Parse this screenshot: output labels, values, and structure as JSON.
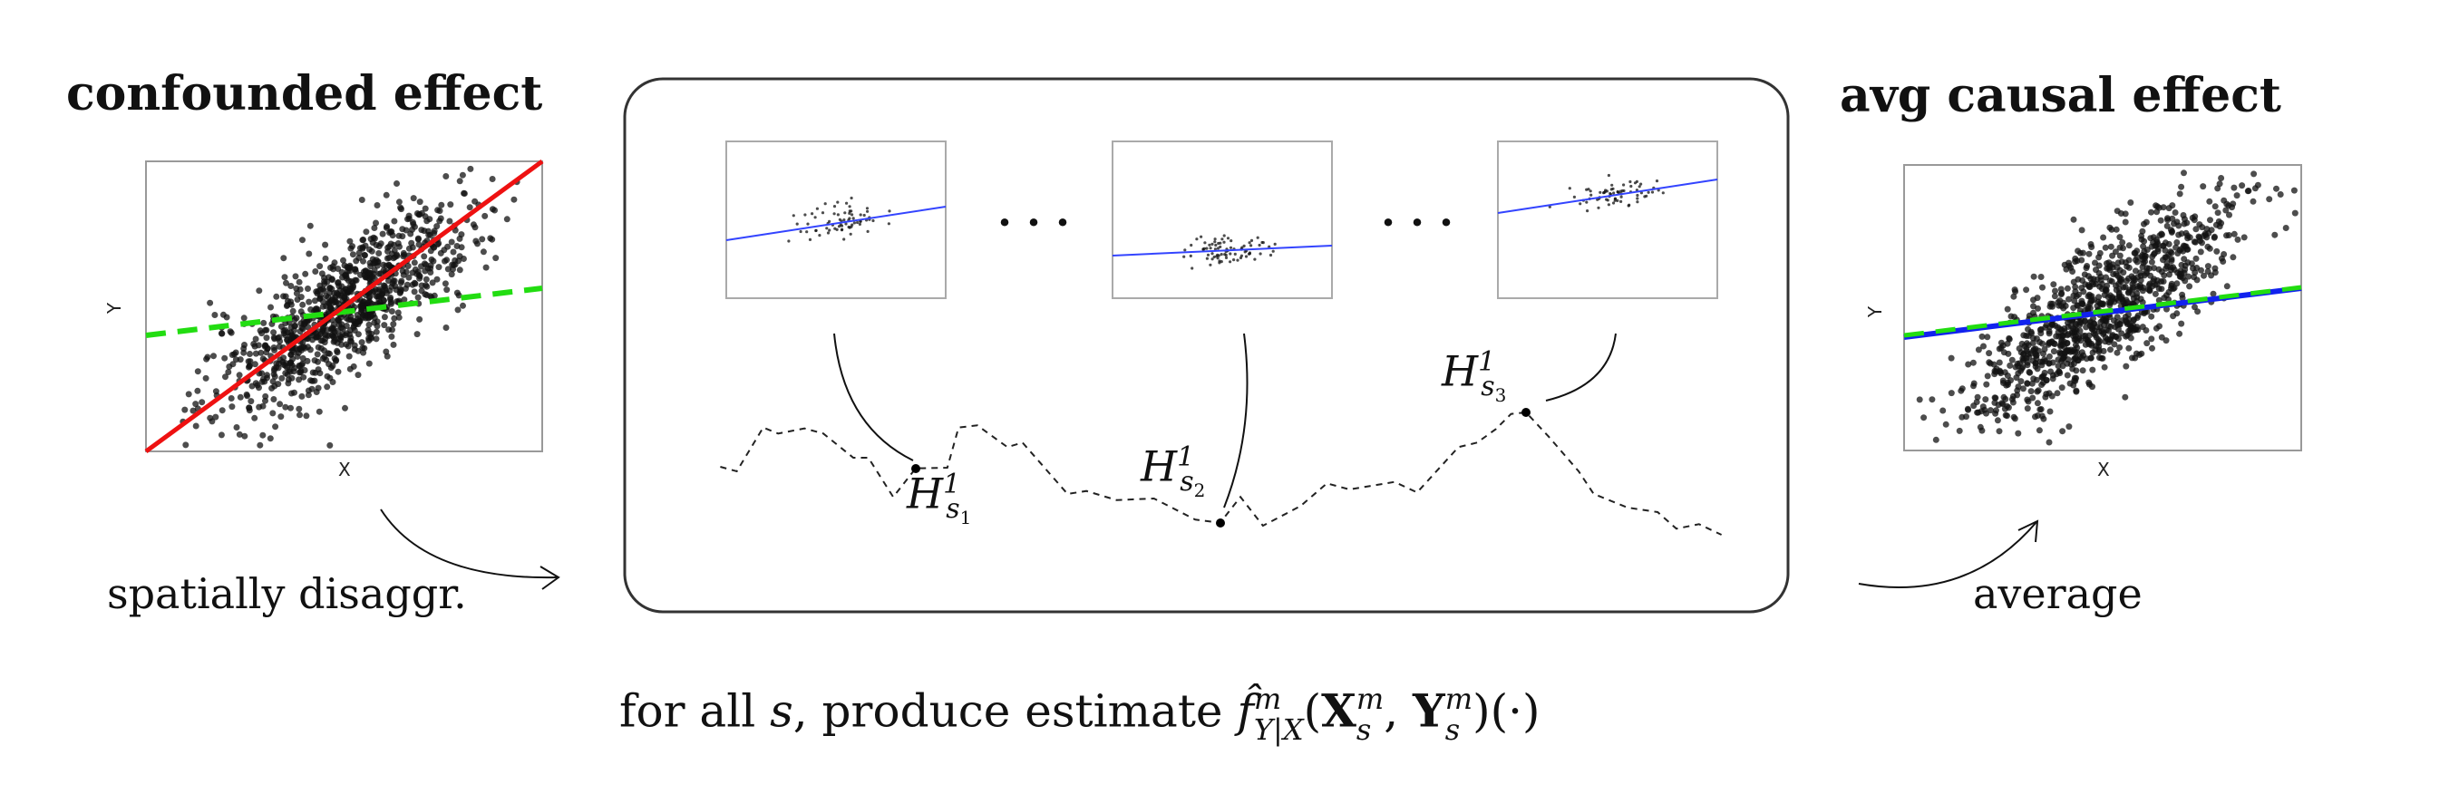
{
  "left": {
    "title": "confounded effect",
    "xlabel": "X",
    "ylabel": "Y",
    "caption": "spatially disaggr."
  },
  "right": {
    "title": "avg causal effect",
    "xlabel": "X",
    "ylabel": "Y",
    "caption": "average"
  },
  "middle": {
    "ellipsis": "· · ·",
    "labels": [
      {
        "base": "H",
        "sup": "1",
        "sub": "s",
        "subsub": "1"
      },
      {
        "base": "H",
        "sup": "1",
        "sub": "s",
        "subsub": "2"
      },
      {
        "base": "H",
        "sup": "1",
        "sub": "s",
        "subsub": "3"
      }
    ]
  },
  "caption": {
    "prefix": "for all ",
    "s": "s",
    "middle": ", produce estimate ",
    "f": "f̂",
    "f_sup": "m",
    "f_sub": "Y|X",
    "open": "(",
    "X": "X",
    "X_sup": "m",
    "X_sub": "s",
    "comma": ", ",
    "Y": "Y",
    "Y_sup": "m",
    "Y_sub": "s",
    "close": ")(·)"
  },
  "colors": {
    "confounded": "#ee1111",
    "naive": "#22dd11",
    "causal": "#1122ee",
    "small_fit": "#3344ff"
  }
}
